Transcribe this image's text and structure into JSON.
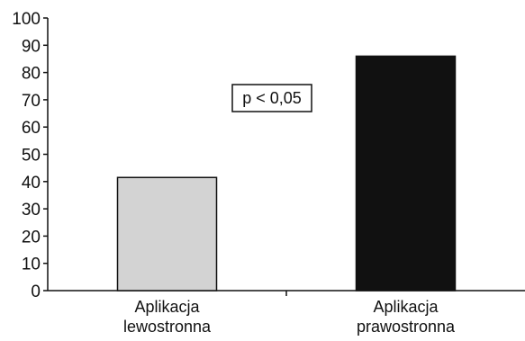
{
  "chart_data": {
    "type": "bar",
    "categories": [
      [
        "Aplikacja",
        "lewostronna"
      ],
      [
        "Aplikacja",
        "prawostronna"
      ]
    ],
    "values": [
      41.5,
      86
    ],
    "bar_colors": [
      "#d3d3d3",
      "#111111"
    ],
    "yticks": [
      0,
      10,
      20,
      30,
      40,
      50,
      60,
      70,
      80,
      90,
      100
    ],
    "ylim": [
      0,
      100
    ],
    "grid": false,
    "annotation": "p < 0,05"
  }
}
